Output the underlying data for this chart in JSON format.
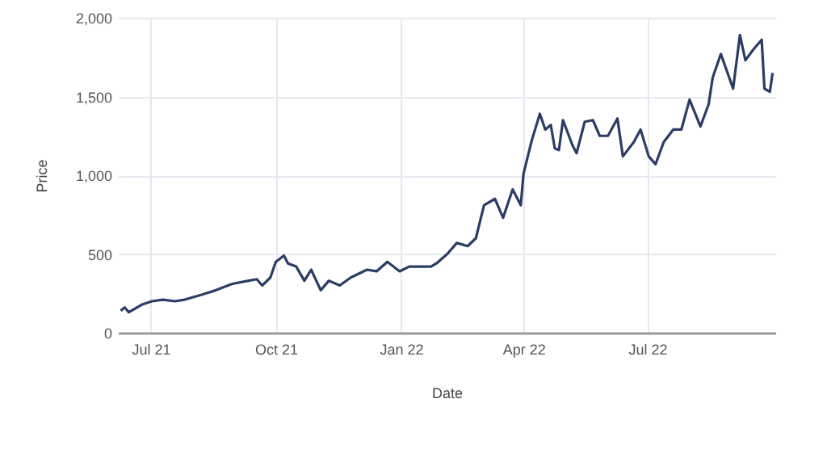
{
  "chart_data": {
    "type": "line",
    "xlabel": "Date",
    "ylabel": "Price",
    "x": [
      "2021-06-09",
      "2021-06-12",
      "2021-06-15",
      "2021-06-25",
      "2021-07-02",
      "2021-07-10",
      "2021-07-19",
      "2021-07-26",
      "2021-08-07",
      "2021-08-18",
      "2021-08-30",
      "2021-09-11",
      "2021-09-17",
      "2021-09-21",
      "2021-09-27",
      "2021-10-01",
      "2021-10-07",
      "2021-10-10",
      "2021-10-16",
      "2021-10-22",
      "2021-10-27",
      "2021-11-03",
      "2021-11-09",
      "2021-11-17",
      "2021-11-25",
      "2021-12-07",
      "2021-12-14",
      "2021-12-22",
      "2021-12-31",
      "2022-01-07",
      "2022-01-23",
      "2022-01-27",
      "2022-02-04",
      "2022-02-11",
      "2022-02-19",
      "2022-02-25",
      "2022-03-03",
      "2022-03-11",
      "2022-03-17",
      "2022-03-24",
      "2022-03-30",
      "2022-04-01",
      "2022-04-07",
      "2022-04-13",
      "2022-04-17",
      "2022-04-21",
      "2022-04-24",
      "2022-04-27",
      "2022-04-30",
      "2022-05-07",
      "2022-05-10",
      "2022-05-16",
      "2022-05-22",
      "2022-05-27",
      "2022-06-02",
      "2022-06-09",
      "2022-06-13",
      "2022-06-21",
      "2022-06-26",
      "2022-07-02",
      "2022-07-07",
      "2022-07-13",
      "2022-07-20",
      "2022-07-26",
      "2022-08-01",
      "2022-08-09",
      "2022-08-15",
      "2022-08-18",
      "2022-08-24",
      "2022-09-02",
      "2022-09-07",
      "2022-09-11",
      "2022-09-17",
      "2022-09-23",
      "2022-09-25",
      "2022-09-29",
      "2022-10-01"
    ],
    "series": [
      {
        "color": "#2b3d66",
        "values": [
          140,
          160,
          130,
          180,
          200,
          210,
          200,
          210,
          240,
          270,
          310,
          330,
          340,
          300,
          350,
          450,
          490,
          440,
          420,
          330,
          400,
          270,
          330,
          300,
          350,
          400,
          390,
          450,
          390,
          420,
          420,
          440,
          500,
          570,
          550,
          600,
          810,
          850,
          730,
          910,
          810,
          1010,
          1220,
          1390,
          1290,
          1320,
          1170,
          1160,
          1350,
          1190,
          1140,
          1340,
          1350,
          1250,
          1250,
          1360,
          1120,
          1210,
          1290,
          1120,
          1070,
          1210,
          1290,
          1290,
          1480,
          1310,
          1450,
          1620,
          1770,
          1550,
          1890,
          1730,
          1800,
          1860,
          1550,
          1530,
          1650
        ]
      }
    ],
    "xlim": [
      "2021-06-07",
      "2022-10-03"
    ],
    "xticks": [
      {
        "value": "2021-07-01",
        "label": "Jul 21"
      },
      {
        "value": "2021-10-01",
        "label": "Oct 21"
      },
      {
        "value": "2022-01-01",
        "label": "Jan 22"
      },
      {
        "value": "2022-04-01",
        "label": "Apr 22"
      },
      {
        "value": "2022-07-01",
        "label": "Jul 22"
      }
    ],
    "ylim": [
      0,
      2000
    ],
    "yticks": [
      0,
      500,
      {
        "value": 1000,
        "label": "1,000"
      },
      {
        "value": 1500,
        "label": "1,500"
      },
      {
        "value": 2000,
        "label": "2,000"
      }
    ],
    "grid": true,
    "line_style": "solid",
    "marker": "none"
  }
}
